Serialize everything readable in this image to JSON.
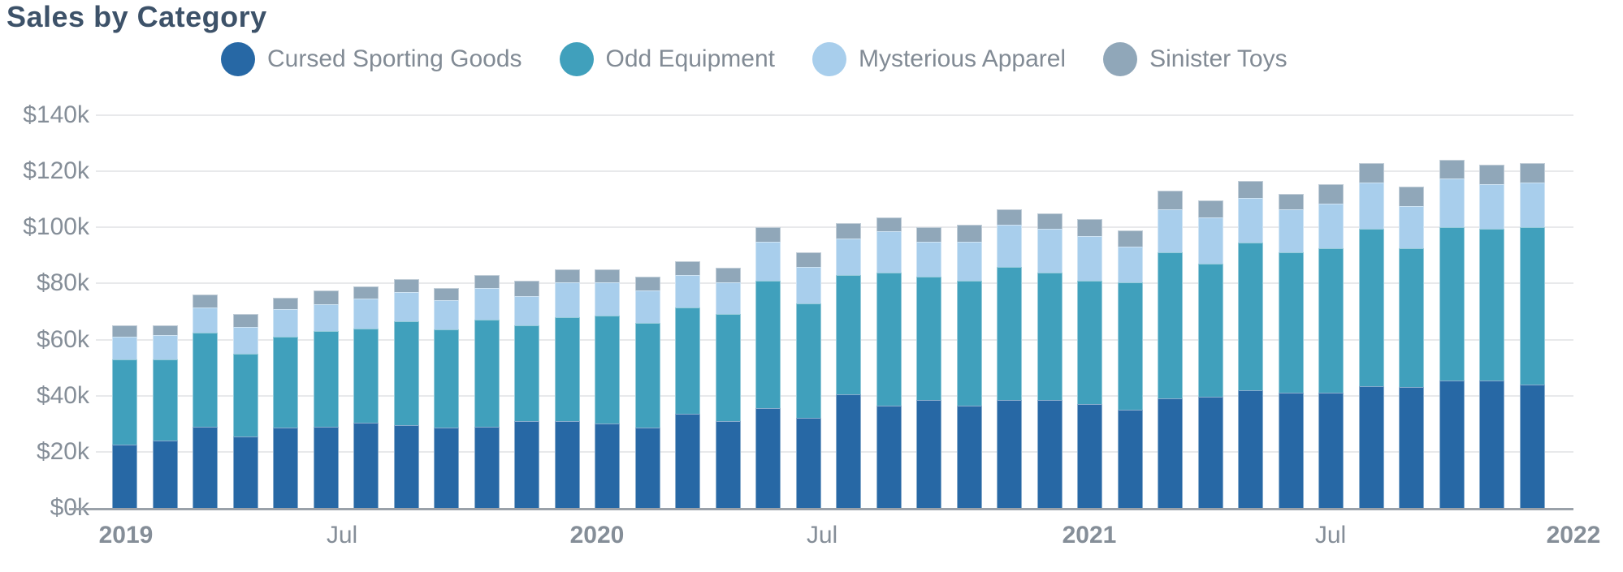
{
  "title": "Sales by Category",
  "chart_data": {
    "type": "bar",
    "stacked": true,
    "title": "Sales by Category",
    "unit": "USD thousands",
    "legend_position": "top",
    "grid": "horizontal",
    "categories": [
      "2019-01",
      "2019-02",
      "2019-03",
      "2019-04",
      "2019-05",
      "2019-06",
      "2019-07",
      "2019-08",
      "2019-09",
      "2019-10",
      "2019-11",
      "2019-12",
      "2020-01",
      "2020-02",
      "2020-03",
      "2020-04",
      "2020-05",
      "2020-06",
      "2020-07",
      "2020-08",
      "2020-09",
      "2020-10",
      "2020-11",
      "2020-12",
      "2021-01",
      "2021-02",
      "2021-03",
      "2021-04",
      "2021-05",
      "2021-06",
      "2021-07",
      "2021-08",
      "2021-09",
      "2021-10",
      "2021-11",
      "2021-12"
    ],
    "series": [
      {
        "name": "Cursed Sporting Goods",
        "color": "#2768a5",
        "values": [
          22.5,
          24,
          29,
          25.5,
          28.5,
          29,
          30.5,
          29.5,
          28.5,
          29,
          31,
          31,
          30,
          28.5,
          33.5,
          31,
          35.5,
          32,
          40.5,
          36.5,
          38.5,
          36.5,
          38.5,
          38.5,
          37,
          35,
          39,
          39.5,
          42,
          41,
          41,
          43.5,
          43,
          45.5,
          45.5,
          44
        ]
      },
      {
        "name": "Odd Equipment",
        "color": "#40a0bc",
        "values": [
          30.5,
          29,
          33.5,
          29.5,
          32.5,
          34,
          33.5,
          37,
          35,
          38,
          34,
          37,
          38.5,
          37.5,
          38,
          38,
          45.5,
          41,
          42.5,
          47.5,
          44,
          44.5,
          47.5,
          45.5,
          44,
          45.5,
          52,
          47.5,
          52.5,
          50,
          51.5,
          56,
          49.5,
          54.5,
          54,
          56
        ]
      },
      {
        "name": "Mysterious Apparel",
        "color": "#a8ceec",
        "values": [
          8,
          8.5,
          9,
          9.5,
          10,
          9.5,
          10.5,
          10.5,
          10.5,
          11.5,
          10.5,
          12.5,
          12,
          11.5,
          11.5,
          11.5,
          14,
          13,
          13,
          14.5,
          12.5,
          14,
          15,
          15.5,
          16,
          12.5,
          15.5,
          16.5,
          16,
          15.5,
          16,
          16.5,
          15,
          17.5,
          16,
          16
        ]
      },
      {
        "name": "Sinister Toys",
        "color": "#90a7b9",
        "values": [
          4,
          3.5,
          4.5,
          4.5,
          4,
          5,
          4.5,
          4.5,
          4.5,
          4.5,
          5.5,
          4.5,
          4.5,
          5,
          5,
          5,
          5,
          5,
          5.5,
          5,
          5,
          6,
          5.5,
          5.5,
          6,
          6,
          6.5,
          6,
          6,
          5.5,
          7,
          7,
          7,
          6.5,
          7,
          7
        ]
      }
    ],
    "y_axis": {
      "min": 0,
      "max": 140,
      "tick_interval": 20,
      "tick_labels": [
        "$0k",
        "$20k",
        "$40k",
        "$60k",
        "$80k",
        "$100k",
        "$120k",
        "$140k"
      ]
    },
    "x_axis": {
      "tick_labels": [
        {
          "label": "2019",
          "bold": true
        },
        {
          "label": "Jul",
          "bold": false
        },
        {
          "label": "2020",
          "bold": true
        },
        {
          "label": "Jul",
          "bold": false
        },
        {
          "label": "2021",
          "bold": true
        },
        {
          "label": "Jul",
          "bold": false
        },
        {
          "label": "2022",
          "bold": true
        }
      ]
    }
  }
}
